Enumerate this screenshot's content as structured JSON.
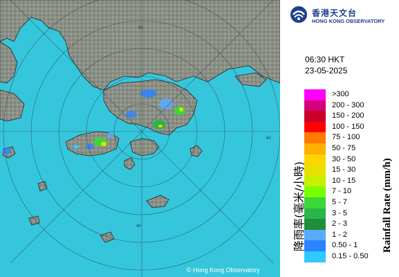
{
  "header": {
    "org_name_cn": "香港天文台",
    "org_name_en": "HONG KONG OBSERVATORY"
  },
  "observation": {
    "time": "06:30 HKT",
    "date": "23-05-2025"
  },
  "axis_label_cn": "降雨率(毫米/小時)",
  "axis_label_en": "Rainfall Rate (mm/h)",
  "legend": [
    {
      "label": ">300",
      "color": "#ff00ff"
    },
    {
      "label": "200 - 300",
      "color": "#d6007a"
    },
    {
      "label": "150 - 200",
      "color": "#c8002a"
    },
    {
      "label": "100 - 150",
      "color": "#ff0000"
    },
    {
      "label": "75 - 100",
      "color": "#ff7a00"
    },
    {
      "label": "50 - 75",
      "color": "#ffb000"
    },
    {
      "label": "30 - 50",
      "color": "#ffd400"
    },
    {
      "label": "15 - 30",
      "color": "#e8e000"
    },
    {
      "label": "10 - 15",
      "color": "#c8f000"
    },
    {
      "label": "7 - 10",
      "color": "#7aff00"
    },
    {
      "label": "5 - 7",
      "color": "#3ad73a"
    },
    {
      "label": "3 - 5",
      "color": "#2ab54a"
    },
    {
      "label": "2 - 3",
      "color": "#1f8f3c"
    },
    {
      "label": "1 - 2",
      "color": "#5aaaff"
    },
    {
      "label": "0.50 - 1",
      "color": "#2b84ff"
    },
    {
      "label": "0.15 - 0.50",
      "color": "#30c8ff"
    }
  ],
  "map": {
    "sea_color": "#36c6dc",
    "land_color": "#8a8f85",
    "range_ring_labels": [
      "40",
      "60",
      "60"
    ]
  },
  "copyright": "© Hong Kong Observatory"
}
